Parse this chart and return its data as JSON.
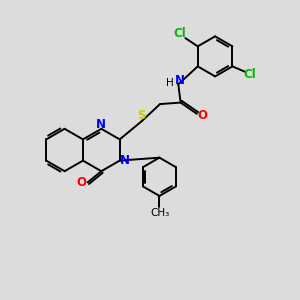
{
  "bg_color": "#dcdcdc",
  "bond_color": "#000000",
  "N_color": "#0000ff",
  "O_color": "#ff0000",
  "S_color": "#cccc00",
  "Cl_color": "#00bb00",
  "line_width": 1.4,
  "font_size": 8.5,
  "figsize": [
    3.0,
    3.0
  ],
  "dpi": 100,
  "xlim": [
    0,
    10
  ],
  "ylim": [
    0,
    10
  ]
}
